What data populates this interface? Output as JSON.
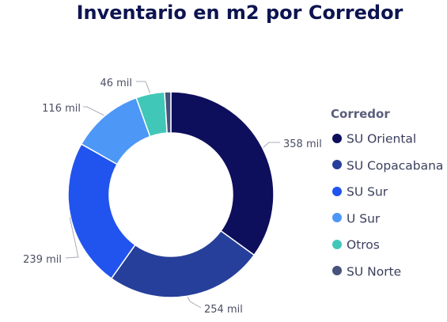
{
  "chart_data": {
    "type": "pie",
    "title": "Inventario en m2 por Corredor",
    "legend_title": "Corredor",
    "legend_placement": "right",
    "categories": [
      "SU Oriental",
      "SU Copacabana",
      "SU Sur",
      "U Sur",
      "Otros",
      "SU Norte"
    ],
    "values": [
      358,
      254,
      239,
      116,
      46,
      10
    ],
    "data_labels": [
      "358 mil",
      "254 mil",
      "239 mil",
      "116 mil",
      "46 mil",
      ""
    ],
    "colors": [
      "#0d0f5c",
      "#263f9a",
      "#2154ee",
      "#4d97f7",
      "#41c7b8",
      "#47527d"
    ]
  }
}
